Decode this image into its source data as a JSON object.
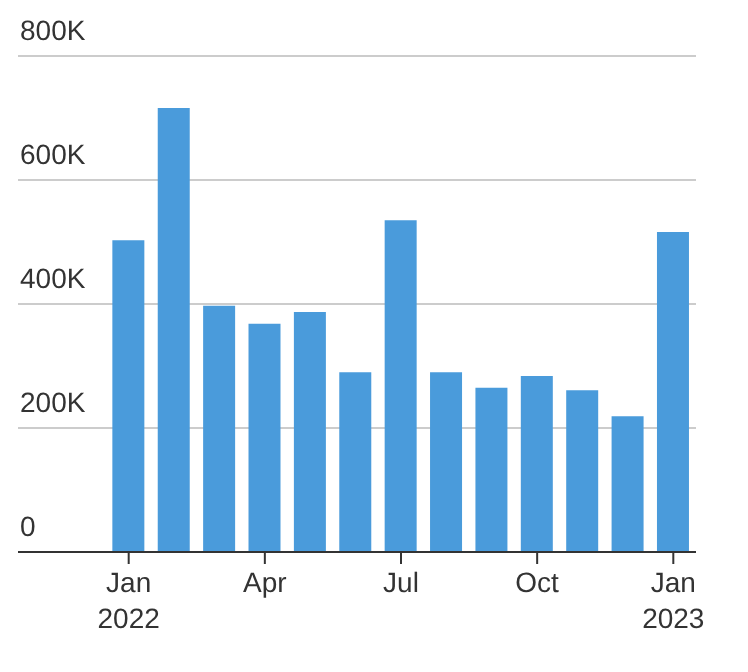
{
  "chart_data": {
    "type": "bar",
    "categories": [
      "Jan 2022",
      null,
      null,
      "Apr",
      null,
      null,
      "Jul",
      null,
      null,
      "Oct",
      null,
      null,
      "Jan 2023"
    ],
    "values": [
      503,
      716,
      397,
      368,
      387,
      290,
      535,
      290,
      265,
      284,
      261,
      219,
      516
    ],
    "color": "#4a9bdb",
    "ylim": [
      0,
      800
    ],
    "yticks": [
      {
        "value": 0,
        "label": "0"
      },
      {
        "value": 200,
        "label": "200K"
      },
      {
        "value": 400,
        "label": "400K"
      },
      {
        "value": 600,
        "label": "600K"
      },
      {
        "value": 800,
        "label": "800K"
      }
    ],
    "grid": "y"
  }
}
